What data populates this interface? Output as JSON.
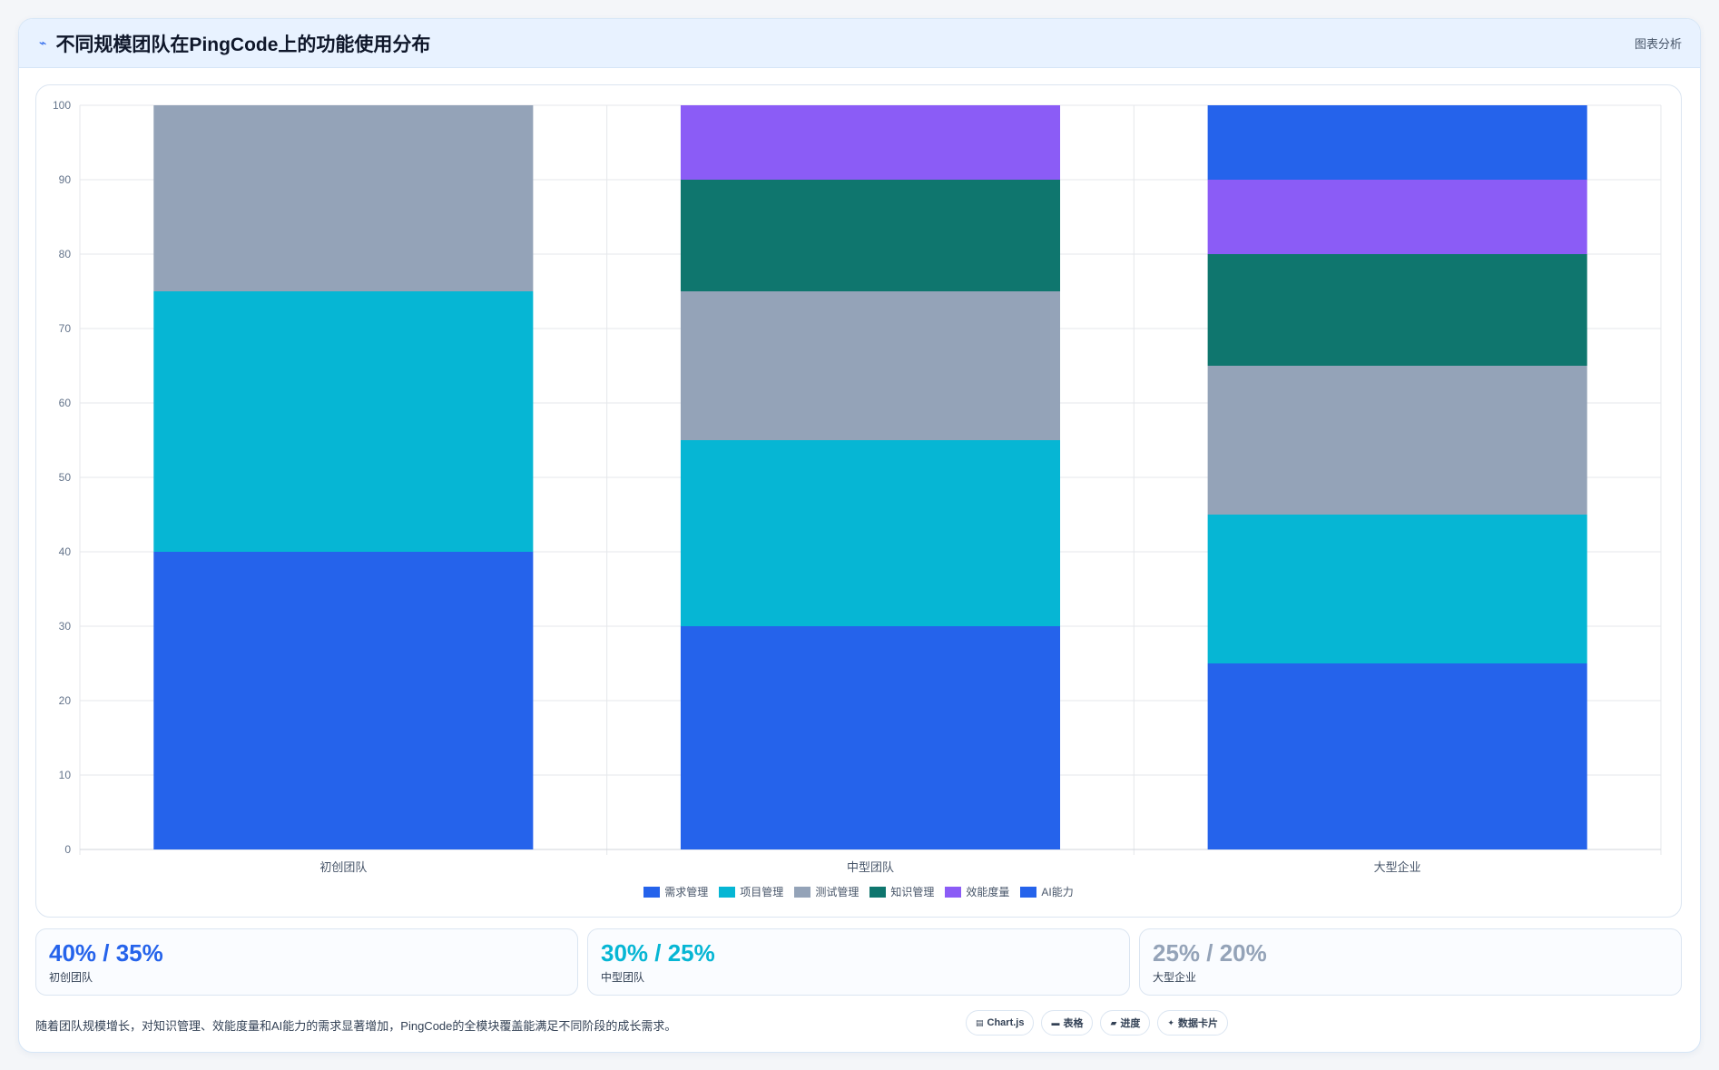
{
  "header": {
    "title": "不同规模团队在PingCode上的功能使用分布",
    "tag": "图表分析"
  },
  "chart_data": {
    "type": "bar",
    "stacked": true,
    "categories": [
      "初创团队",
      "中型团队",
      "大型企业"
    ],
    "series": [
      {
        "name": "需求管理",
        "color": "#2563eb",
        "values": [
          40,
          30,
          25
        ]
      },
      {
        "name": "项目管理",
        "color": "#06b6d4",
        "values": [
          35,
          25,
          20
        ]
      },
      {
        "name": "测试管理",
        "color": "#94a3b8",
        "values": [
          25,
          20,
          20
        ]
      },
      {
        "name": "知识管理",
        "color": "#0f766e",
        "values": [
          0,
          15,
          15
        ]
      },
      {
        "name": "效能度量",
        "color": "#8b5cf6",
        "values": [
          0,
          10,
          10
        ]
      },
      {
        "name": "AI能力",
        "color": "#2563eb",
        "values": [
          0,
          0,
          10
        ]
      }
    ],
    "ylim": [
      0,
      100
    ],
    "yticks": [
      0,
      10,
      20,
      30,
      40,
      50,
      60,
      70,
      80,
      90,
      100
    ],
    "grid": true,
    "legend": "bottom-center"
  },
  "stats": [
    {
      "value": "40% / 35%",
      "label": "初创团队",
      "color": "#2563eb"
    },
    {
      "value": "30% / 25%",
      "label": "中型团队",
      "color": "#06b6d4"
    },
    {
      "value": "25% / 20%",
      "label": "大型企业",
      "color": "#94a3b8"
    }
  ],
  "footer": {
    "text": "随着团队规模增长，对知识管理、效能度量和AI能力的需求显著增加，PingCode的全模块覆盖能满足不同阶段的成长需求。",
    "pills": [
      {
        "icon": "chart-icon",
        "label": "Chart.js"
      },
      {
        "icon": "table-icon",
        "label": "表格"
      },
      {
        "icon": "progress-icon",
        "label": "进度"
      },
      {
        "icon": "card-icon",
        "label": "数据卡片"
      }
    ]
  }
}
